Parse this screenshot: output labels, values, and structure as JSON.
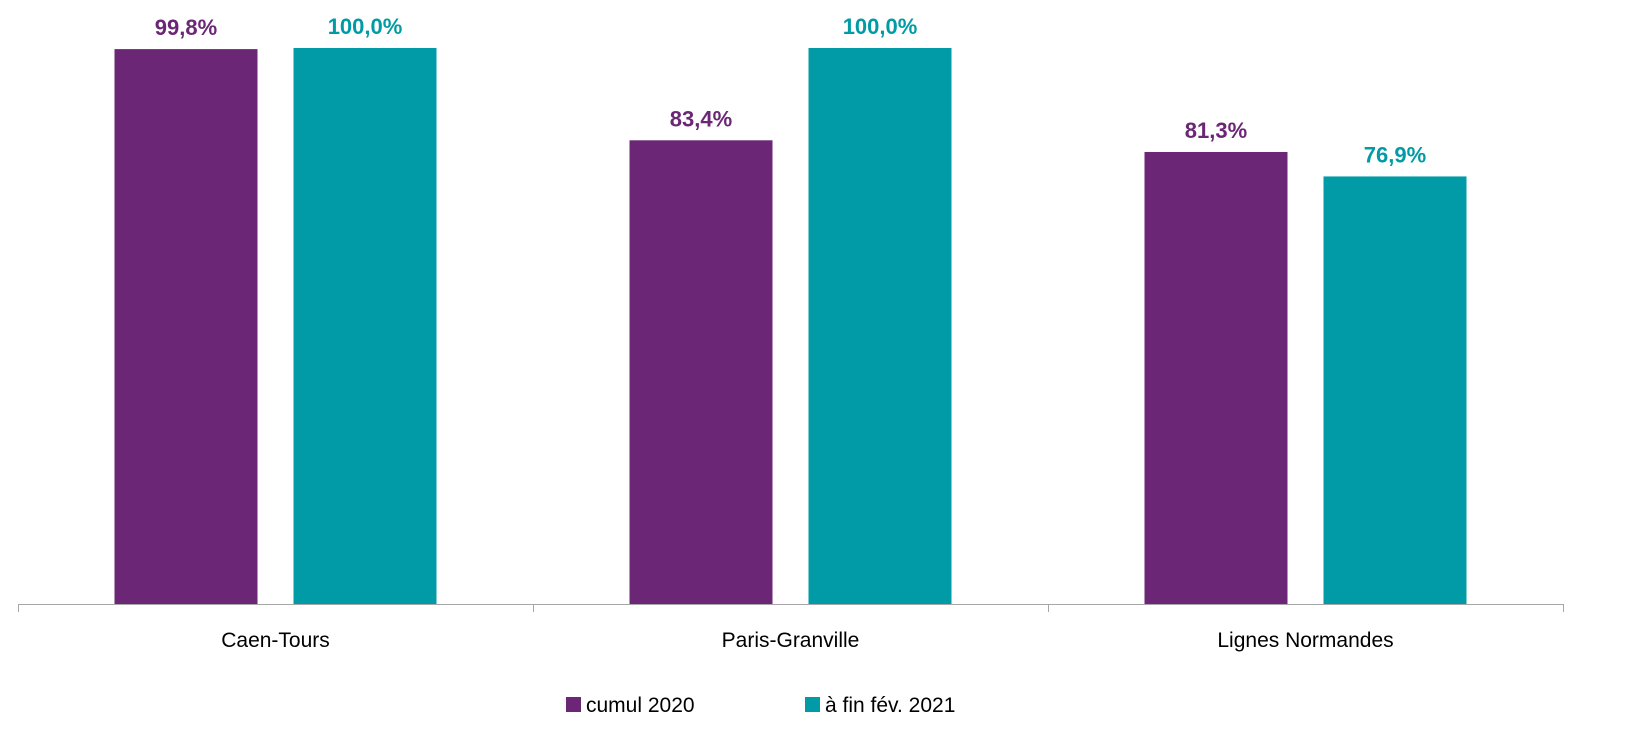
{
  "chart_data": {
    "type": "bar",
    "categories": [
      "Caen-Tours",
      "Paris-Granville",
      "Lignes Normandes"
    ],
    "series": [
      {
        "name": "cumul 2020",
        "values": [
          99.8,
          83.4,
          81.3
        ],
        "labels": [
          "99,8%",
          "83,4%",
          "81,3%"
        ],
        "color": "#6B2675"
      },
      {
        "name": "à fin fév. 2021",
        "values": [
          100.0,
          100.0,
          76.9
        ],
        "labels": [
          "100,0%",
          "100,0%",
          "76,9%"
        ],
        "color": "#009BA6"
      }
    ],
    "title": "",
    "xlabel": "",
    "ylabel": "",
    "ylim": [
      0,
      100
    ],
    "grid": false,
    "legend_position": "bottom"
  },
  "colors": {
    "axis": "#A6A6A6",
    "background": "#FFFFFF"
  }
}
